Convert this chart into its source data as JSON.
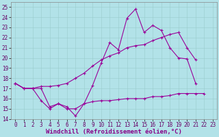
{
  "xlabel": "Windchill (Refroidissement éolien,°C)",
  "bg_color": "#b2e2e8",
  "line_color": "#990099",
  "xlim": [
    -0.5,
    23.5
  ],
  "ylim": [
    14,
    25.5
  ],
  "yticks": [
    14,
    15,
    16,
    17,
    18,
    19,
    20,
    21,
    22,
    23,
    24,
    25
  ],
  "xticks": [
    0,
    1,
    2,
    3,
    4,
    5,
    6,
    7,
    8,
    9,
    10,
    11,
    12,
    13,
    14,
    15,
    16,
    17,
    18,
    19,
    20,
    21,
    22,
    23
  ],
  "xticklabels": [
    "0",
    "1",
    "2",
    "3",
    "4",
    "5",
    "6",
    "7",
    "8",
    "9",
    "10",
    "11",
    "12",
    "13",
    "14",
    "15",
    "16",
    "17",
    "18",
    "19",
    "20",
    "21",
    "22",
    "23"
  ],
  "line1_y": [
    17.5,
    17.0,
    17.0,
    17.0,
    15.2,
    15.5,
    15.2,
    14.3,
    15.5,
    17.3,
    19.5,
    21.5,
    20.8,
    23.9,
    24.8,
    22.5,
    23.2,
    22.7,
    21.0,
    20.0,
    19.9,
    17.5,
    null,
    null
  ],
  "line2_y": [
    17.5,
    17.0,
    17.0,
    17.2,
    17.2,
    17.3,
    17.5,
    18.0,
    18.5,
    19.2,
    19.8,
    20.2,
    20.5,
    21.0,
    21.2,
    21.3,
    21.7,
    22.0,
    22.3,
    22.5,
    21.0,
    19.8,
    null,
    null
  ],
  "line3_y": [
    17.5,
    17.0,
    17.0,
    15.8,
    15.0,
    15.5,
    15.0,
    15.0,
    15.5,
    15.7,
    15.8,
    15.8,
    15.9,
    16.0,
    16.0,
    16.0,
    16.2,
    16.2,
    16.3,
    16.5,
    16.5,
    16.5,
    16.5,
    null
  ],
  "grid_color": "#99cccc",
  "xlabel_color": "#880088",
  "xlabel_fontsize": 6.5,
  "tick_fontsize": 5.5,
  "tick_color": "#660066"
}
